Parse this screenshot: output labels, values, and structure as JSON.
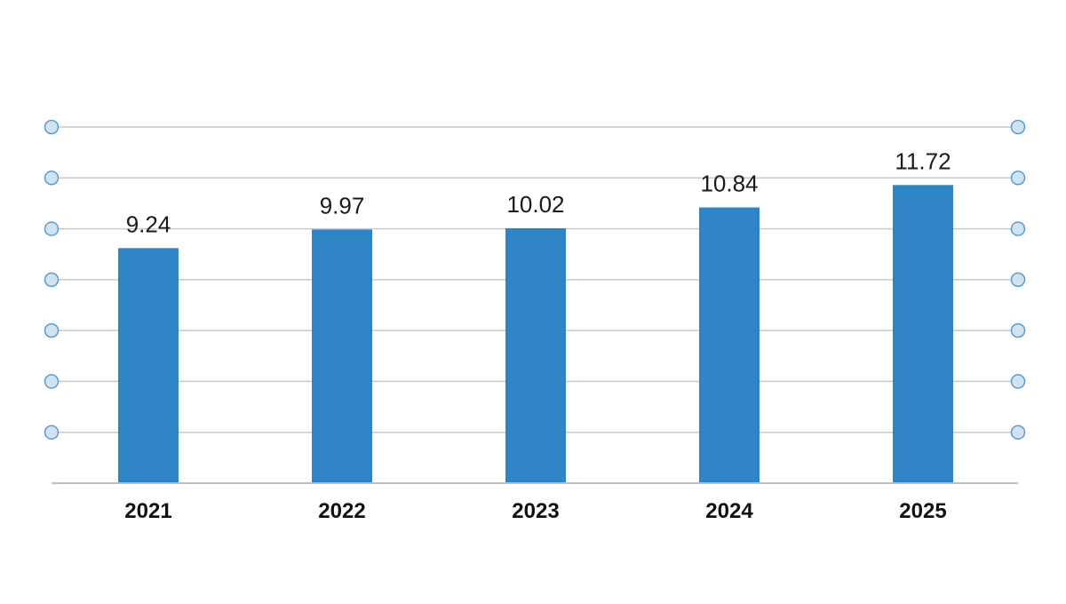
{
  "chart_data": {
    "type": "bar",
    "categories": [
      "2021",
      "2022",
      "2023",
      "2024",
      "2025"
    ],
    "values": [
      9.24,
      9.97,
      10.02,
      10.84,
      11.72
    ],
    "data_labels": [
      "9.24",
      "9.97",
      "10.02",
      "10.84",
      "11.72"
    ],
    "title": "",
    "xlabel": "",
    "ylabel": "",
    "ylim": [
      0,
      14
    ],
    "grid": true,
    "gridline_count": 7,
    "colors": {
      "bar": "#2f84c6",
      "grid": "#c9c9c9",
      "axis": "#bdbdbd",
      "marker_fill": "#cfe3f3",
      "marker_stroke": "#5b9bd1"
    }
  }
}
